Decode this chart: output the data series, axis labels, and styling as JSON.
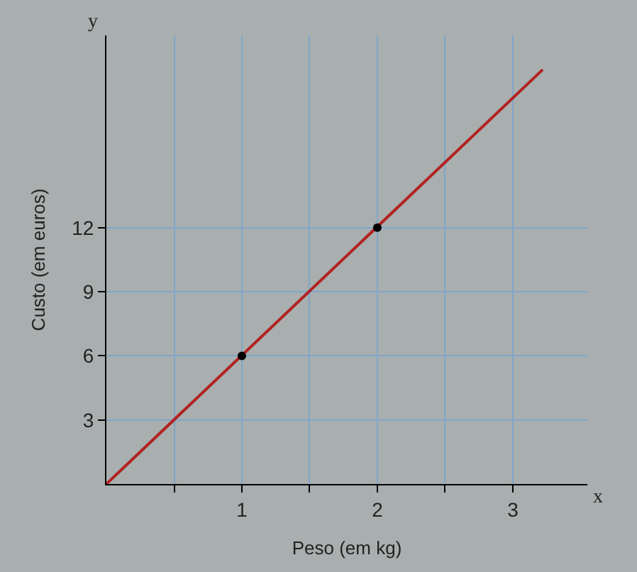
{
  "chart_data": {
    "type": "line",
    "xlabel": "Peso (em kg)",
    "ylabel": "Custo (em euros)",
    "annotations": [
      "y",
      "x"
    ],
    "series": [
      {
        "color": "#b22222",
        "x": [
          0,
          3.22
        ],
        "values": [
          0,
          19.4
        ],
        "marker": "none"
      },
      {
        "type": "scatter",
        "color": "#000000",
        "x": [
          1,
          2
        ],
        "values": [
          6,
          12
        ],
        "marker": "circle"
      }
    ],
    "xlim": [
      0,
      3.55
    ],
    "ylim": [
      0,
      21
    ],
    "xticks": [
      {
        "value": 0.5,
        "label": null
      },
      1,
      {
        "value": 1.5,
        "label": null
      },
      2,
      {
        "value": 2.5,
        "label": null
      },
      3
    ],
    "yticks": [
      3,
      6,
      9,
      12
    ],
    "grid": true
  }
}
